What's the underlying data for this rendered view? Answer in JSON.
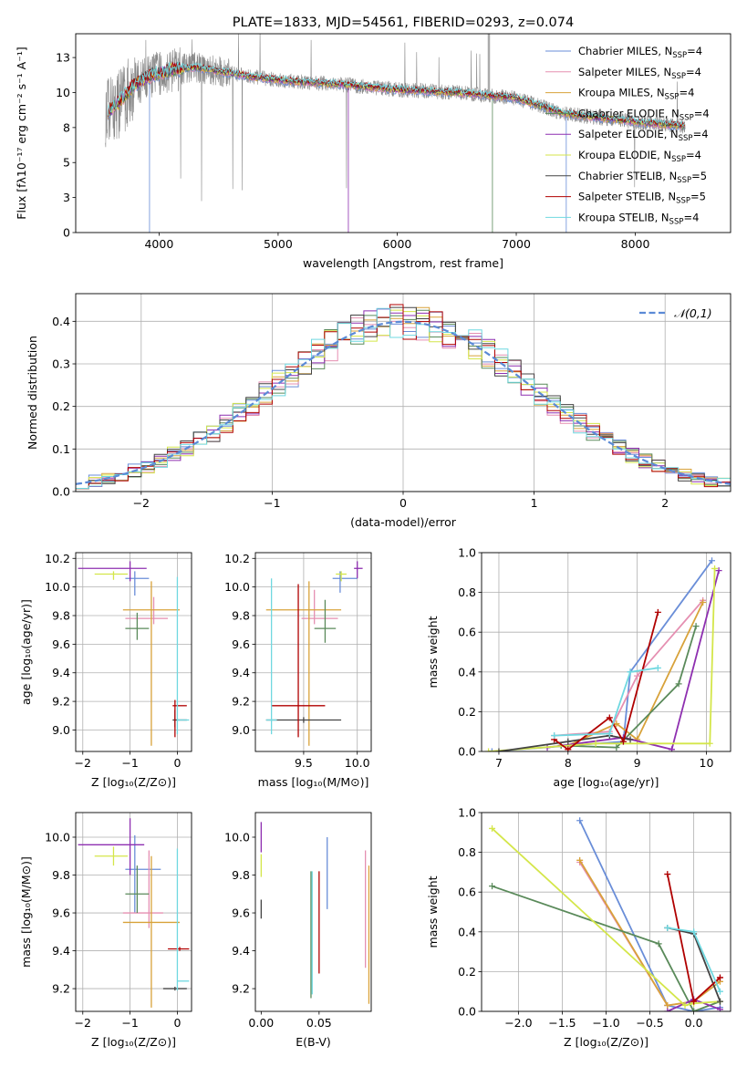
{
  "palette": [
    "#6a8ed8",
    "#e58fb1",
    "#d8a23a",
    "#5a8a5a",
    "#8e2fb0",
    "#d4e64a",
    "#444444",
    "#b00000",
    "#6fd8e0"
  ],
  "spectrum_color": "#888888",
  "chart_data": [
    {
      "id": "spectrum",
      "type": "line",
      "title": "PLATE=1833, MJD=54561, FIBERID=0293, z=0.074",
      "xlabel": "wavelength [Angstrom, rest frame]",
      "ylabel": "Flux [fλ10⁻¹⁷ erg cm⁻² s⁻¹ A⁻¹]",
      "xlim": [
        3300,
        8800
      ],
      "ylim": [
        0,
        14.2
      ],
      "xticks": [
        4000,
        5000,
        6000,
        7000,
        8000
      ],
      "yticks": [
        0.0,
        2.5,
        5.0,
        7.5,
        10.0,
        12.5
      ],
      "grid": false,
      "legend": "top-right",
      "data_wavelength_range": [
        3550,
        8420
      ],
      "continuum_anchors": {
        "x": [
          3550,
          3650,
          3800,
          3950,
          4100,
          4300,
          4500,
          4800,
          5100,
          5500,
          6000,
          6500,
          7000,
          7400,
          7800,
          8100,
          8420
        ],
        "y": [
          8.5,
          9.2,
          10.6,
          11.3,
          11.6,
          11.8,
          11.5,
          11.1,
          10.8,
          10.6,
          10.2,
          10.0,
          9.6,
          8.5,
          8.1,
          7.8,
          7.6
        ]
      },
      "series": [
        {
          "name": "Chabrier MILES, N$_{SSP}$=4"
        },
        {
          "name": "Salpeter MILES, N$_{SSP}$=4"
        },
        {
          "name": "Kroupa MILES, N$_{SSP}$=4"
        },
        {
          "name": "Chabrier ELODIE, N$_{SSP}$=4"
        },
        {
          "name": "Salpeter ELODIE, N$_{SSP}$=4"
        },
        {
          "name": "Kroupa ELODIE, N$_{SSP}$=4"
        },
        {
          "name": "Chabrier STELIB, N$_{SSP}$=5"
        },
        {
          "name": "Salpeter STELIB, N$_{SSP}$=5"
        },
        {
          "name": "Kroupa STELIB, N$_{SSP}$=4"
        }
      ],
      "legend_labels": [
        {
          "pre": "Chabrier MILES, N",
          "sub": "SSP",
          "post": "=4"
        },
        {
          "pre": "Salpeter MILES, N",
          "sub": "SSP",
          "post": "=4"
        },
        {
          "pre": "Kroupa MILES, N",
          "sub": "SSP",
          "post": "=4"
        },
        {
          "pre": "Chabrier ELODIE, N",
          "sub": "SSP",
          "post": "=4"
        },
        {
          "pre": "Salpeter ELODIE, N",
          "sub": "SSP",
          "post": "=4"
        },
        {
          "pre": "Kroupa ELODIE, N",
          "sub": "SSP",
          "post": "=4"
        },
        {
          "pre": "Chabrier STELIB, N",
          "sub": "SSP",
          "post": "=5"
        },
        {
          "pre": "Salpeter STELIB, N",
          "sub": "SSP",
          "post": "=5"
        },
        {
          "pre": "Kroupa STELIB, N",
          "sub": "SSP",
          "post": "=4"
        }
      ]
    },
    {
      "id": "residuals",
      "type": "step",
      "xlabel": "(data-model)/error",
      "ylabel": "Normed distribution",
      "xlim": [
        -2.5,
        2.5
      ],
      "ylim": [
        0,
        0.465
      ],
      "xticks": [
        -2,
        -1,
        0,
        1,
        2
      ],
      "yticks": [
        0.0,
        0.1,
        0.2,
        0.3,
        0.4
      ],
      "grid": true,
      "legend": "top-right",
      "gaussian_label": "𝒩(0,1)",
      "gaussian_color": "#5b8ad6",
      "bin_width": 0.1,
      "bin_start": -2.5,
      "histogram_jitter": 0.03
    },
    {
      "id": "age_vs_Z",
      "type": "errorbar",
      "xlabel": "Z [log₁₀(Z/Z⊙)]",
      "ylabel": "age  [log₁₀(age/yr)]",
      "xlim": [
        -2.15,
        0.3
      ],
      "ylim": [
        8.85,
        10.24
      ],
      "xticks": [
        -2,
        -1,
        0
      ],
      "yticks": [
        9.0,
        9.2,
        9.4,
        9.6,
        9.8,
        10.0,
        10.2
      ],
      "grid": true,
      "points": [
        {
          "series": 0,
          "x": -0.9,
          "xerr": [
            0.2,
            0.3
          ],
          "y": 10.06,
          "yerr": [
            0.12,
            0.05
          ]
        },
        {
          "series": 1,
          "x": -0.5,
          "xerr": [
            0.6,
            0.3
          ],
          "y": 9.78,
          "yerr": [
            0.04,
            0.15
          ]
        },
        {
          "series": 2,
          "x": -0.55,
          "xerr": [
            0.6,
            0.6
          ],
          "y": 9.84,
          "yerr": [
            0.95,
            0.2
          ]
        },
        {
          "series": 3,
          "x": -0.85,
          "xerr": [
            0.25,
            0.25
          ],
          "y": 9.71,
          "yerr": [
            0.08,
            0.11
          ]
        },
        {
          "series": 4,
          "x": -1.0,
          "xerr": [
            1.1,
            0.35
          ],
          "y": 10.13,
          "yerr": [
            0.09,
            0.05
          ]
        },
        {
          "series": 5,
          "x": -1.35,
          "xerr": [
            0.4,
            0.3
          ],
          "y": 10.09,
          "yerr": [
            0.04,
            0.02
          ]
        },
        {
          "series": 6,
          "x": -0.05,
          "xerr": [
            0.05,
            0.25
          ],
          "y": 9.07,
          "yerr": [
            0.05,
            0.07
          ]
        },
        {
          "series": 7,
          "x": -0.05,
          "xerr": [
            0.05,
            0.25
          ],
          "y": 9.17,
          "yerr": [
            0.22,
            0.04
          ]
        },
        {
          "series": 8,
          "x": 0.0,
          "xerr": [
            0.0,
            0.25
          ],
          "y": 9.07,
          "yerr": [
            0.1,
            1.0
          ]
        }
      ]
    },
    {
      "id": "age_vs_mass",
      "type": "errorbar",
      "xlabel": "mass [log₁₀(M/M⊙)]",
      "ylabel": "",
      "xlim": [
        9.05,
        10.13
      ],
      "ylim": [
        8.85,
        10.24
      ],
      "xticks": [
        9.5,
        10.0
      ],
      "yticks": [
        9.0,
        9.2,
        9.4,
        9.6,
        9.8,
        10.0,
        10.2
      ],
      "grid": true,
      "points": [
        {
          "series": 0,
          "x": 9.84,
          "xerr": [
            0.07,
            0.16
          ],
          "y": 10.06,
          "yerr": [
            0.1,
            0.05
          ]
        },
        {
          "series": 1,
          "x": 9.6,
          "xerr": [
            0.12,
            0.22
          ],
          "y": 9.78,
          "yerr": [
            0.04,
            0.2
          ]
        },
        {
          "series": 2,
          "x": 9.55,
          "xerr": [
            0.4,
            0.3
          ],
          "y": 9.84,
          "yerr": [
            0.95,
            0.2
          ]
        },
        {
          "series": 3,
          "x": 9.7,
          "xerr": [
            0.1,
            0.1
          ],
          "y": 9.71,
          "yerr": [
            0.1,
            0.2
          ]
        },
        {
          "series": 4,
          "x": 10.0,
          "xerr": [
            0.03,
            0.05
          ],
          "y": 10.13,
          "yerr": [
            0.07,
            0.05
          ]
        },
        {
          "series": 5,
          "x": 9.85,
          "xerr": [
            0.05,
            0.05
          ],
          "y": 10.09,
          "yerr": [
            0.05,
            0.02
          ]
        },
        {
          "series": 6,
          "x": 9.5,
          "xerr": [
            0.35,
            0.35
          ],
          "y": 9.07,
          "yerr": [
            0.02,
            0.02
          ]
        },
        {
          "series": 7,
          "x": 9.45,
          "xerr": [
            0.25,
            0.25
          ],
          "y": 9.17,
          "yerr": [
            0.22,
            0.85
          ]
        },
        {
          "series": 8,
          "x": 9.2,
          "xerr": [
            0.05,
            0.05
          ],
          "y": 9.07,
          "yerr": [
            0.1,
            0.99
          ]
        }
      ]
    },
    {
      "id": "weight_vs_age",
      "type": "line",
      "xlabel": "age  [log₁₀(age/yr)]",
      "ylabel": "mass weight",
      "xlim": [
        6.75,
        10.35
      ],
      "ylim": [
        0,
        1.0
      ],
      "xticks": [
        7,
        8,
        9,
        10
      ],
      "yticks": [
        0.0,
        0.2,
        0.4,
        0.6,
        0.8,
        1.0
      ],
      "grid": true,
      "series": [
        {
          "series": 0,
          "x": [
            6.9,
            8.8,
            8.9,
            10.08
          ],
          "y": [
            0.0,
            0.05,
            0.4,
            0.96
          ]
        },
        {
          "series": 1,
          "x": [
            7.8,
            8.6,
            9.0,
            9.95
          ],
          "y": [
            0.08,
            0.1,
            0.38,
            0.76
          ]
        },
        {
          "series": 2,
          "x": [
            8.0,
            8.7,
            9.0,
            9.95
          ],
          "y": [
            0.03,
            0.14,
            0.06,
            0.75
          ]
        },
        {
          "series": 3,
          "x": [
            7.9,
            8.7,
            9.6,
            9.85
          ],
          "y": [
            0.03,
            0.02,
            0.34,
            0.63
          ]
        },
        {
          "series": 4,
          "x": [
            7.7,
            8.8,
            9.5,
            10.18
          ],
          "y": [
            0.02,
            0.07,
            0.01,
            0.91
          ]
        },
        {
          "series": 5,
          "x": [
            6.85,
            8.4,
            10.05,
            10.12
          ],
          "y": [
            0.0,
            0.04,
            0.04,
            0.92
          ]
        },
        {
          "series": 6,
          "x": [
            7.0,
            8.0,
            8.6,
            8.9
          ],
          "y": [
            0.0,
            0.05,
            0.08,
            0.06
          ]
        },
        {
          "series": 7,
          "x": [
            7.8,
            8.0,
            8.6,
            8.8,
            9.3
          ],
          "y": [
            0.06,
            0.01,
            0.17,
            0.05,
            0.7
          ]
        },
        {
          "series": 8,
          "x": [
            7.8,
            8.6,
            8.9,
            9.3
          ],
          "y": [
            0.08,
            0.09,
            0.4,
            0.42
          ]
        }
      ]
    },
    {
      "id": "mass_vs_Z",
      "type": "errorbar",
      "xlabel": "Z [log₁₀(Z/Z⊙)]",
      "ylabel": "mass [log₁₀(M/M⊙)]",
      "xlim": [
        -2.15,
        0.3
      ],
      "ylim": [
        9.08,
        10.13
      ],
      "xticks": [
        -2,
        -1,
        0
      ],
      "yticks": [
        9.2,
        9.4,
        9.6,
        9.8,
        10.0
      ],
      "grid": true,
      "points": [
        {
          "series": 0,
          "x": -0.9,
          "xerr": [
            0.2,
            0.55
          ],
          "y": 9.83,
          "yerr": [
            0.23,
            0.18
          ]
        },
        {
          "series": 1,
          "x": -0.6,
          "xerr": [
            0.55,
            0.3
          ],
          "y": 9.6,
          "yerr": [
            0.08,
            0.33
          ]
        },
        {
          "series": 2,
          "x": -0.55,
          "xerr": [
            0.6,
            0.6
          ],
          "y": 9.55,
          "yerr": [
            0.45,
            0.35
          ]
        },
        {
          "series": 3,
          "x": -0.85,
          "xerr": [
            0.25,
            0.25
          ],
          "y": 9.7,
          "yerr": [
            0.1,
            0.15
          ]
        },
        {
          "series": 4,
          "x": -1.0,
          "xerr": [
            1.1,
            0.3
          ],
          "y": 9.96,
          "yerr": [
            0.16,
            0.14
          ]
        },
        {
          "series": 5,
          "x": -1.35,
          "xerr": [
            0.4,
            0.3
          ],
          "y": 9.9,
          "yerr": [
            0.05,
            0.05
          ]
        },
        {
          "series": 6,
          "x": -0.05,
          "xerr": [
            0.25,
            0.25
          ],
          "y": 9.2,
          "yerr": [
            0.01,
            0.01
          ]
        },
        {
          "series": 7,
          "x": 0.05,
          "xerr": [
            0.25,
            0.2
          ],
          "y": 9.41,
          "yerr": [
            0.01,
            0.01
          ]
        },
        {
          "series": 8,
          "x": 0.0,
          "xerr": [
            0.0,
            0.25
          ],
          "y": 9.24,
          "yerr": [
            0.05,
            0.7
          ]
        }
      ]
    },
    {
      "id": "mass_vs_ebv",
      "type": "errorbar",
      "xlabel": "E(B-V)",
      "ylabel": "",
      "xlim": [
        -0.005,
        0.095
      ],
      "ylim": [
        9.08,
        10.13
      ],
      "xticks": [
        0.0,
        0.05
      ],
      "yticks": [
        9.2,
        9.4,
        9.6,
        9.8,
        10.0
      ],
      "grid": false,
      "points": [
        {
          "series": 0,
          "x": 0.057,
          "xerr": [
            0,
            0
          ],
          "y": 9.82,
          "yerr": [
            0.2,
            0.18
          ]
        },
        {
          "series": 1,
          "x": 0.09,
          "xerr": [
            0,
            0
          ],
          "y": 9.62,
          "yerr": [
            0.31,
            0.31
          ]
        },
        {
          "series": 2,
          "x": 0.093,
          "xerr": [
            0,
            0
          ],
          "y": 9.5,
          "yerr": [
            0.38,
            0.35
          ]
        },
        {
          "series": 3,
          "x": 0.043,
          "xerr": [
            0,
            0
          ],
          "y": 9.45,
          "yerr": [
            0.3,
            0.37
          ]
        },
        {
          "series": 4,
          "x": 0.0,
          "xerr": [
            0,
            0
          ],
          "y": 10.0,
          "yerr": [
            0.08,
            0.08
          ]
        },
        {
          "series": 5,
          "x": 0.0,
          "xerr": [
            0,
            0
          ],
          "y": 9.85,
          "yerr": [
            0.06,
            0.06
          ]
        },
        {
          "series": 6,
          "x": 0.0,
          "xerr": [
            0,
            0
          ],
          "y": 9.62,
          "yerr": [
            0.05,
            0.05
          ]
        },
        {
          "series": 7,
          "x": 0.05,
          "xerr": [
            0,
            0
          ],
          "y": 9.55,
          "yerr": [
            0.27,
            0.27
          ]
        },
        {
          "series": 8,
          "x": 0.044,
          "xerr": [
            0,
            0
          ],
          "y": 9.5,
          "yerr": [
            0.33,
            0.32
          ]
        }
      ]
    },
    {
      "id": "weight_vs_Z",
      "type": "line",
      "xlabel": "Z [log₁₀(Z/Z⊙)]",
      "ylabel": "mass weight",
      "xlim": [
        -2.42,
        0.42
      ],
      "ylim": [
        0,
        1.0
      ],
      "xticks": [
        -2.0,
        -1.5,
        -1.0,
        -0.5,
        0.0
      ],
      "yticks": [
        0.0,
        0.2,
        0.4,
        0.6,
        0.8,
        1.0
      ],
      "grid": true,
      "series": [
        {
          "series": 0,
          "x": [
            -1.3,
            -0.3,
            0.0,
            0.3
          ],
          "y": [
            0.96,
            0.03,
            0.0,
            0.02
          ]
        },
        {
          "series": 1,
          "x": [
            -1.3,
            -0.3,
            0.0,
            0.3
          ],
          "y": [
            0.75,
            0.03,
            0.05,
            0.17
          ]
        },
        {
          "series": 2,
          "x": [
            -1.3,
            -0.3,
            0.0,
            0.3
          ],
          "y": [
            0.76,
            0.03,
            0.05,
            0.15
          ]
        },
        {
          "series": 3,
          "x": [
            -2.3,
            -0.4,
            0.0,
            0.3
          ],
          "y": [
            0.63,
            0.34,
            0.0,
            0.05
          ]
        },
        {
          "series": 4,
          "x": [
            -0.3,
            0.0,
            0.3
          ],
          "y": [
            0.0,
            0.06,
            0.01
          ]
        },
        {
          "series": 5,
          "x": [
            -2.3,
            -0.1,
            0.0,
            0.3
          ],
          "y": [
            0.92,
            0.03,
            0.04,
            0.05
          ]
        },
        {
          "series": 6,
          "x": [
            -0.3,
            0.0,
            0.3
          ],
          "y": [
            0.42,
            0.39,
            0.05
          ]
        },
        {
          "series": 7,
          "x": [
            -0.3,
            0.0,
            0.3
          ],
          "y": [
            0.69,
            0.05,
            0.17
          ]
        },
        {
          "series": 8,
          "x": [
            -0.3,
            0.0,
            0.3
          ],
          "y": [
            0.42,
            0.4,
            0.1
          ]
        }
      ]
    }
  ]
}
